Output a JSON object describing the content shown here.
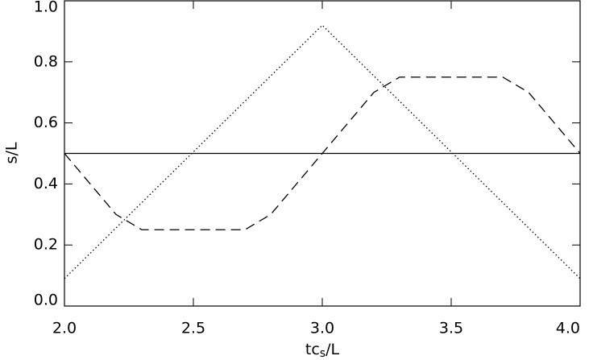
{
  "chart_data": {
    "type": "line",
    "xlabel": {
      "main": "tc",
      "sub": "s",
      "rest": "/L"
    },
    "ylabel": "s/L",
    "xlim": [
      2.0,
      4.0
    ],
    "ylim": [
      0.0,
      1.0
    ],
    "xticks": [
      {
        "value": 2.0,
        "label": "2.0"
      },
      2.5,
      {
        "value": 3.0,
        "label": "3.0"
      },
      3.5,
      {
        "value": 4.0,
        "label": "4.0"
      }
    ],
    "yticks": [
      {
        "value": 0.0,
        "label": "0.0"
      },
      0.2,
      0.4,
      0.6,
      0.8,
      {
        "value": 1.0,
        "label": "1.0"
      }
    ],
    "series": [
      {
        "style": "solid",
        "color": "#000000",
        "x": [
          2.0,
          4.0
        ],
        "values": [
          0.5,
          0.5
        ]
      },
      {
        "style": "dotted",
        "color": "#000000",
        "x": [
          2.0,
          3.0,
          4.0
        ],
        "values": [
          0.09,
          0.92,
          0.09
        ]
      },
      {
        "style": "dashed",
        "color": "#000000",
        "x": [
          2.0,
          2.2,
          2.3,
          2.7,
          2.8,
          3.0,
          3.2,
          3.3,
          3.7,
          3.8,
          4.0
        ],
        "values": [
          0.5,
          0.3,
          0.25,
          0.25,
          0.3,
          0.5,
          0.7,
          0.75,
          0.75,
          0.7,
          0.5
        ]
      }
    ]
  }
}
